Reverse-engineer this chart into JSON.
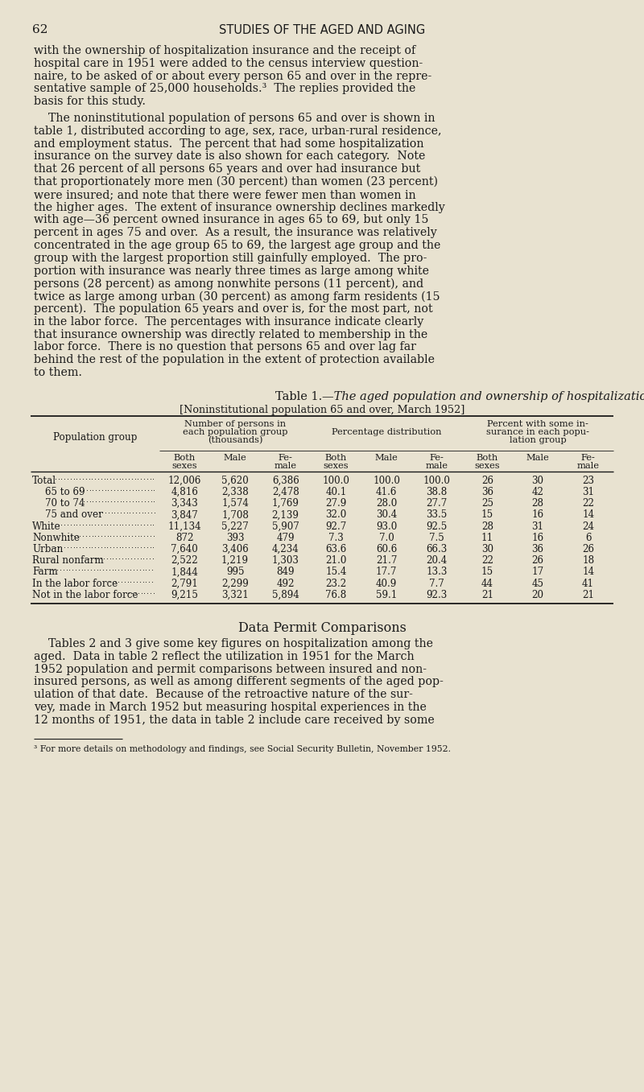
{
  "page_number": "62",
  "header": "STUDIES OF THE AGED AND AGING",
  "bg_color": "#e8e2d0",
  "text_color": "#1a1a1a",
  "para1_lines": [
    "with the ownership of hospitalization insurance and the receipt of",
    "hospital care in 1951 were added to the census interview question-",
    "naire, to be asked of or about every person 65 and over in the repre-",
    "sentative sample of 25,000 households.³  The replies provided the",
    "basis for this study."
  ],
  "para2_lines": [
    "    The noninstitutional population of persons 65 and over is shown in",
    "table 1, distributed according to age, sex, race, urban-rural residence,",
    "and employment status.  The percent that had some hospitalization",
    "insurance on the survey date is also shown for each category.  Note",
    "that 26 percent of all persons 65 years and over had insurance but",
    "that proportionately more men (30 percent) than women (23 percent)",
    "were insured; and note that there were fewer men than women in",
    "the higher ages.  The extent of insurance ownership declines markedly",
    "with age—36 percent owned insurance in ages 65 to 69, but only 15",
    "percent in ages 75 and over.  As a result, the insurance was relatively",
    "concentrated in the age group 65 to 69, the largest age group and the",
    "group with the largest proportion still gainfully employed.  The pro-",
    "portion with insurance was nearly three times as large among white",
    "persons (28 percent) as among nonwhite persons (11 percent), and",
    "twice as large among urban (30 percent) as among farm residents (15",
    "percent).  The population 65 years and over is, for the most part, not",
    "in the labor force.  The percentages with insurance indicate clearly",
    "that insurance ownership was directly related to membership in the",
    "labor force.  There is no question that persons 65 and over lag far",
    "behind the rest of the population in the extent of protection available",
    "to them."
  ],
  "table_title_roman": "Table 1.",
  "table_title_italic": "—The aged population and ownership of hospitalization insurance",
  "table_subtitle": "[Noninstitutional population 65 and over, March 1952]",
  "col_hdr1_lines": [
    "Number of persons in",
    "each population group",
    "(thousands)"
  ],
  "col_hdr2_lines": [
    "Percentage distribution"
  ],
  "col_hdr3_lines": [
    "Percent with some in-",
    "surance in each popu-",
    "lation group"
  ],
  "subhdr": [
    "Both\nsexes",
    "Male",
    "Fe-\nmale",
    "Both\nsexes",
    "Male",
    "Fe-\nmale",
    "Both\nsexes",
    "Male",
    "Fe-\nmale"
  ],
  "pop_group_label": "Population group",
  "row_labels": [
    "Total",
    "65 to 69",
    "70 to 74",
    "75 and over",
    "White",
    "Nonwhite",
    "Urban",
    "Rural nonfarm",
    "Farm",
    "In the labor force",
    "Not in the labor force"
  ],
  "row_indent": [
    false,
    true,
    true,
    true,
    false,
    false,
    false,
    false,
    false,
    false,
    false
  ],
  "table_data": [
    [
      "12,006",
      "5,620",
      "6,386",
      "100.0",
      "100.0",
      "100.0",
      "26",
      "30",
      "23"
    ],
    [
      "4,816",
      "2,338",
      "2,478",
      "40.1",
      "41.6",
      "38.8",
      "36",
      "42",
      "31"
    ],
    [
      "3,343",
      "1,574",
      "1,769",
      "27.9",
      "28.0",
      "27.7",
      "25",
      "28",
      "22"
    ],
    [
      "3,847",
      "1,708",
      "2,139",
      "32.0",
      "30.4",
      "33.5",
      "15",
      "16",
      "14"
    ],
    [
      "11,134",
      "5,227",
      "5,907",
      "92.7",
      "93.0",
      "92.5",
      "28",
      "31",
      "24"
    ],
    [
      "872",
      "393",
      "479",
      "7.3",
      "7.0",
      "7.5",
      "11",
      "16",
      "6"
    ],
    [
      "7,640",
      "3,406",
      "4,234",
      "63.6",
      "60.6",
      "66.3",
      "30",
      "36",
      "26"
    ],
    [
      "2,522",
      "1,219",
      "1,303",
      "21.0",
      "21.7",
      "20.4",
      "22",
      "26",
      "18"
    ],
    [
      "1,844",
      "995",
      "849",
      "15.4",
      "17.7",
      "13.3",
      "15",
      "17",
      "14"
    ],
    [
      "2,791",
      "2,299",
      "492",
      "23.2",
      "40.9",
      "7.7",
      "44",
      "45",
      "41"
    ],
    [
      "9,215",
      "3,321",
      "5,894",
      "76.8",
      "59.1",
      "92.3",
      "21",
      "20",
      "21"
    ]
  ],
  "section_title": "Data Permit Comparisons",
  "para3_lines": [
    "    Tables 2 and 3 give some key figures on hospitalization among the",
    "aged.  Data in table 2 reflect the utilization in 1951 for the March",
    "1952 population and permit comparisons between insured and non-",
    "insured persons, as well as among different segments of the aged pop-",
    "ulation of that date.  Because of the retroactive nature of the sur-",
    "vey, made in March 1952 but measuring hospital experiences in the",
    "12 months of 1951, the data in table 2 include care received by some"
  ],
  "footnote": "³ For more details on methodology and findings, see Social Security Bulletin, November 1952."
}
